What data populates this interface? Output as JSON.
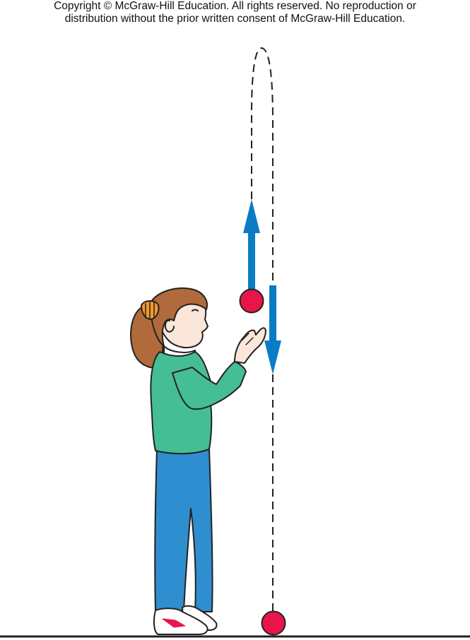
{
  "copyright": {
    "line1": "Copyright © McGraw-Hill Education.  All rights reserved. No reproduction or",
    "line2": "distribution without the prior written consent of McGraw-Hill Education."
  },
  "colors": {
    "arrow": "#0a7cc4",
    "ball": "#e8154a",
    "sweater": "#45be96",
    "pants": "#2f8ed0",
    "hair": "#b06a3c",
    "skin": "#fbe7da",
    "scrunchie": "#f29a2c",
    "ground": "#222222",
    "shoe_accent": "#e8154a"
  },
  "icons": {
    "up_arrow": "up-arrow-icon",
    "down_arrow": "down-arrow-icon"
  }
}
